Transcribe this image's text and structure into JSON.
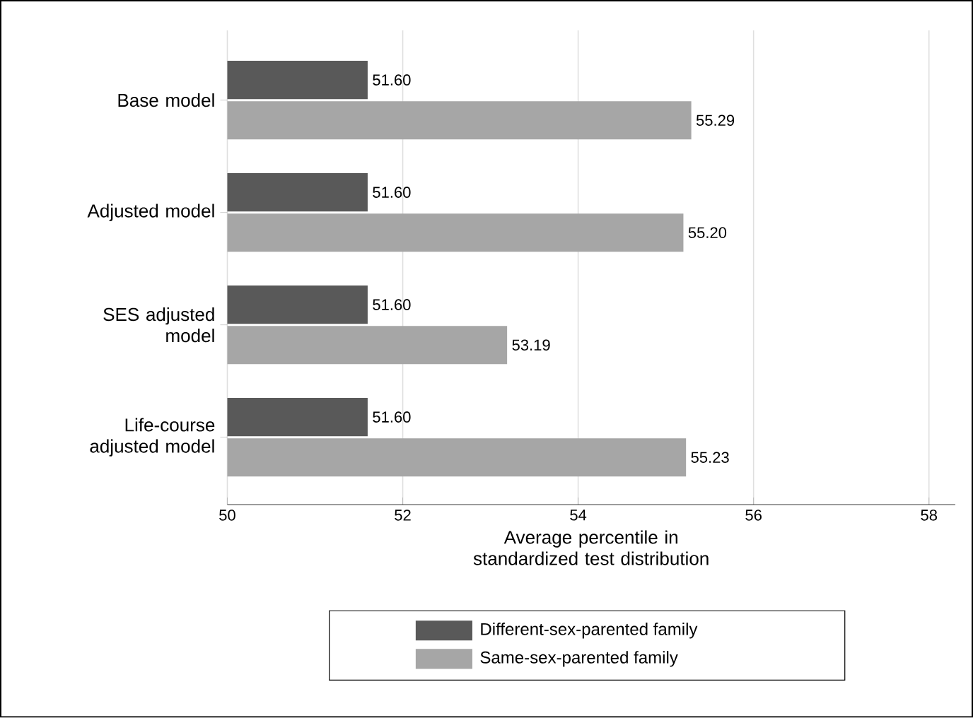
{
  "chart_data": {
    "type": "bar",
    "orientation": "horizontal",
    "categories": [
      "Base model",
      "Adjusted model",
      "SES adjusted model",
      "Life-course adjusted model"
    ],
    "series": [
      {
        "name": "Different-sex-parented family",
        "color": "#595959",
        "values": [
          51.6,
          51.6,
          51.6,
          51.6
        ],
        "value_labels": [
          "51.60",
          "51.60",
          "51.60",
          "51.60"
        ]
      },
      {
        "name": "Same-sex-parented family",
        "color": "#a6a6a6",
        "values": [
          55.29,
          55.2,
          53.19,
          55.23
        ],
        "value_labels": [
          "55.29",
          "55.20",
          "53.19",
          "55.23"
        ]
      }
    ],
    "xlabel": "Average percentile in standardized test distribution",
    "xlim": [
      50,
      58.3
    ],
    "xticks": [
      50,
      52,
      54,
      56,
      58
    ],
    "grid": "x",
    "legend": "bottom"
  }
}
